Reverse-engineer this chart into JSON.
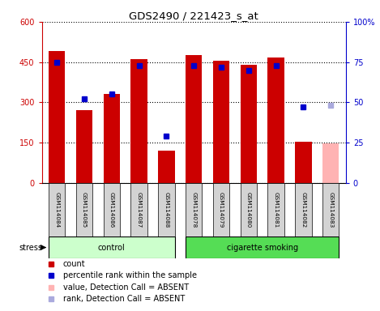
{
  "title": "GDS2490 / 221423_s_at",
  "samples": [
    "GSM114084",
    "GSM114085",
    "GSM114086",
    "GSM114087",
    "GSM114088",
    "GSM114078",
    "GSM114079",
    "GSM114080",
    "GSM114081",
    "GSM114082",
    "GSM114083"
  ],
  "counts": [
    490,
    270,
    330,
    460,
    120,
    475,
    455,
    440,
    468,
    155,
    null
  ],
  "ranks": [
    75,
    52,
    55,
    73,
    29,
    73,
    72,
    70,
    73,
    47,
    null
  ],
  "absent_count": [
    null,
    null,
    null,
    null,
    null,
    null,
    null,
    null,
    null,
    null,
    148
  ],
  "absent_rank": [
    null,
    null,
    null,
    null,
    null,
    null,
    null,
    null,
    null,
    null,
    48
  ],
  "bar_color": "#cc0000",
  "absent_bar_color": "#ffb3b3",
  "rank_color": "#0000cc",
  "absent_rank_color": "#aaaadd",
  "control_color": "#ccffcc",
  "smoking_color": "#55dd55",
  "ylim_left": [
    0,
    600
  ],
  "ylim_right": [
    0,
    100
  ],
  "yticks_left": [
    0,
    150,
    300,
    450,
    600
  ],
  "ytick_labels_left": [
    "0",
    "150",
    "300",
    "450",
    "600"
  ],
  "yticks_right": [
    0,
    25,
    50,
    75,
    100
  ],
  "ytick_labels_right": [
    "0",
    "25",
    "50",
    "75",
    "100%"
  ],
  "background_color": "#ffffff"
}
